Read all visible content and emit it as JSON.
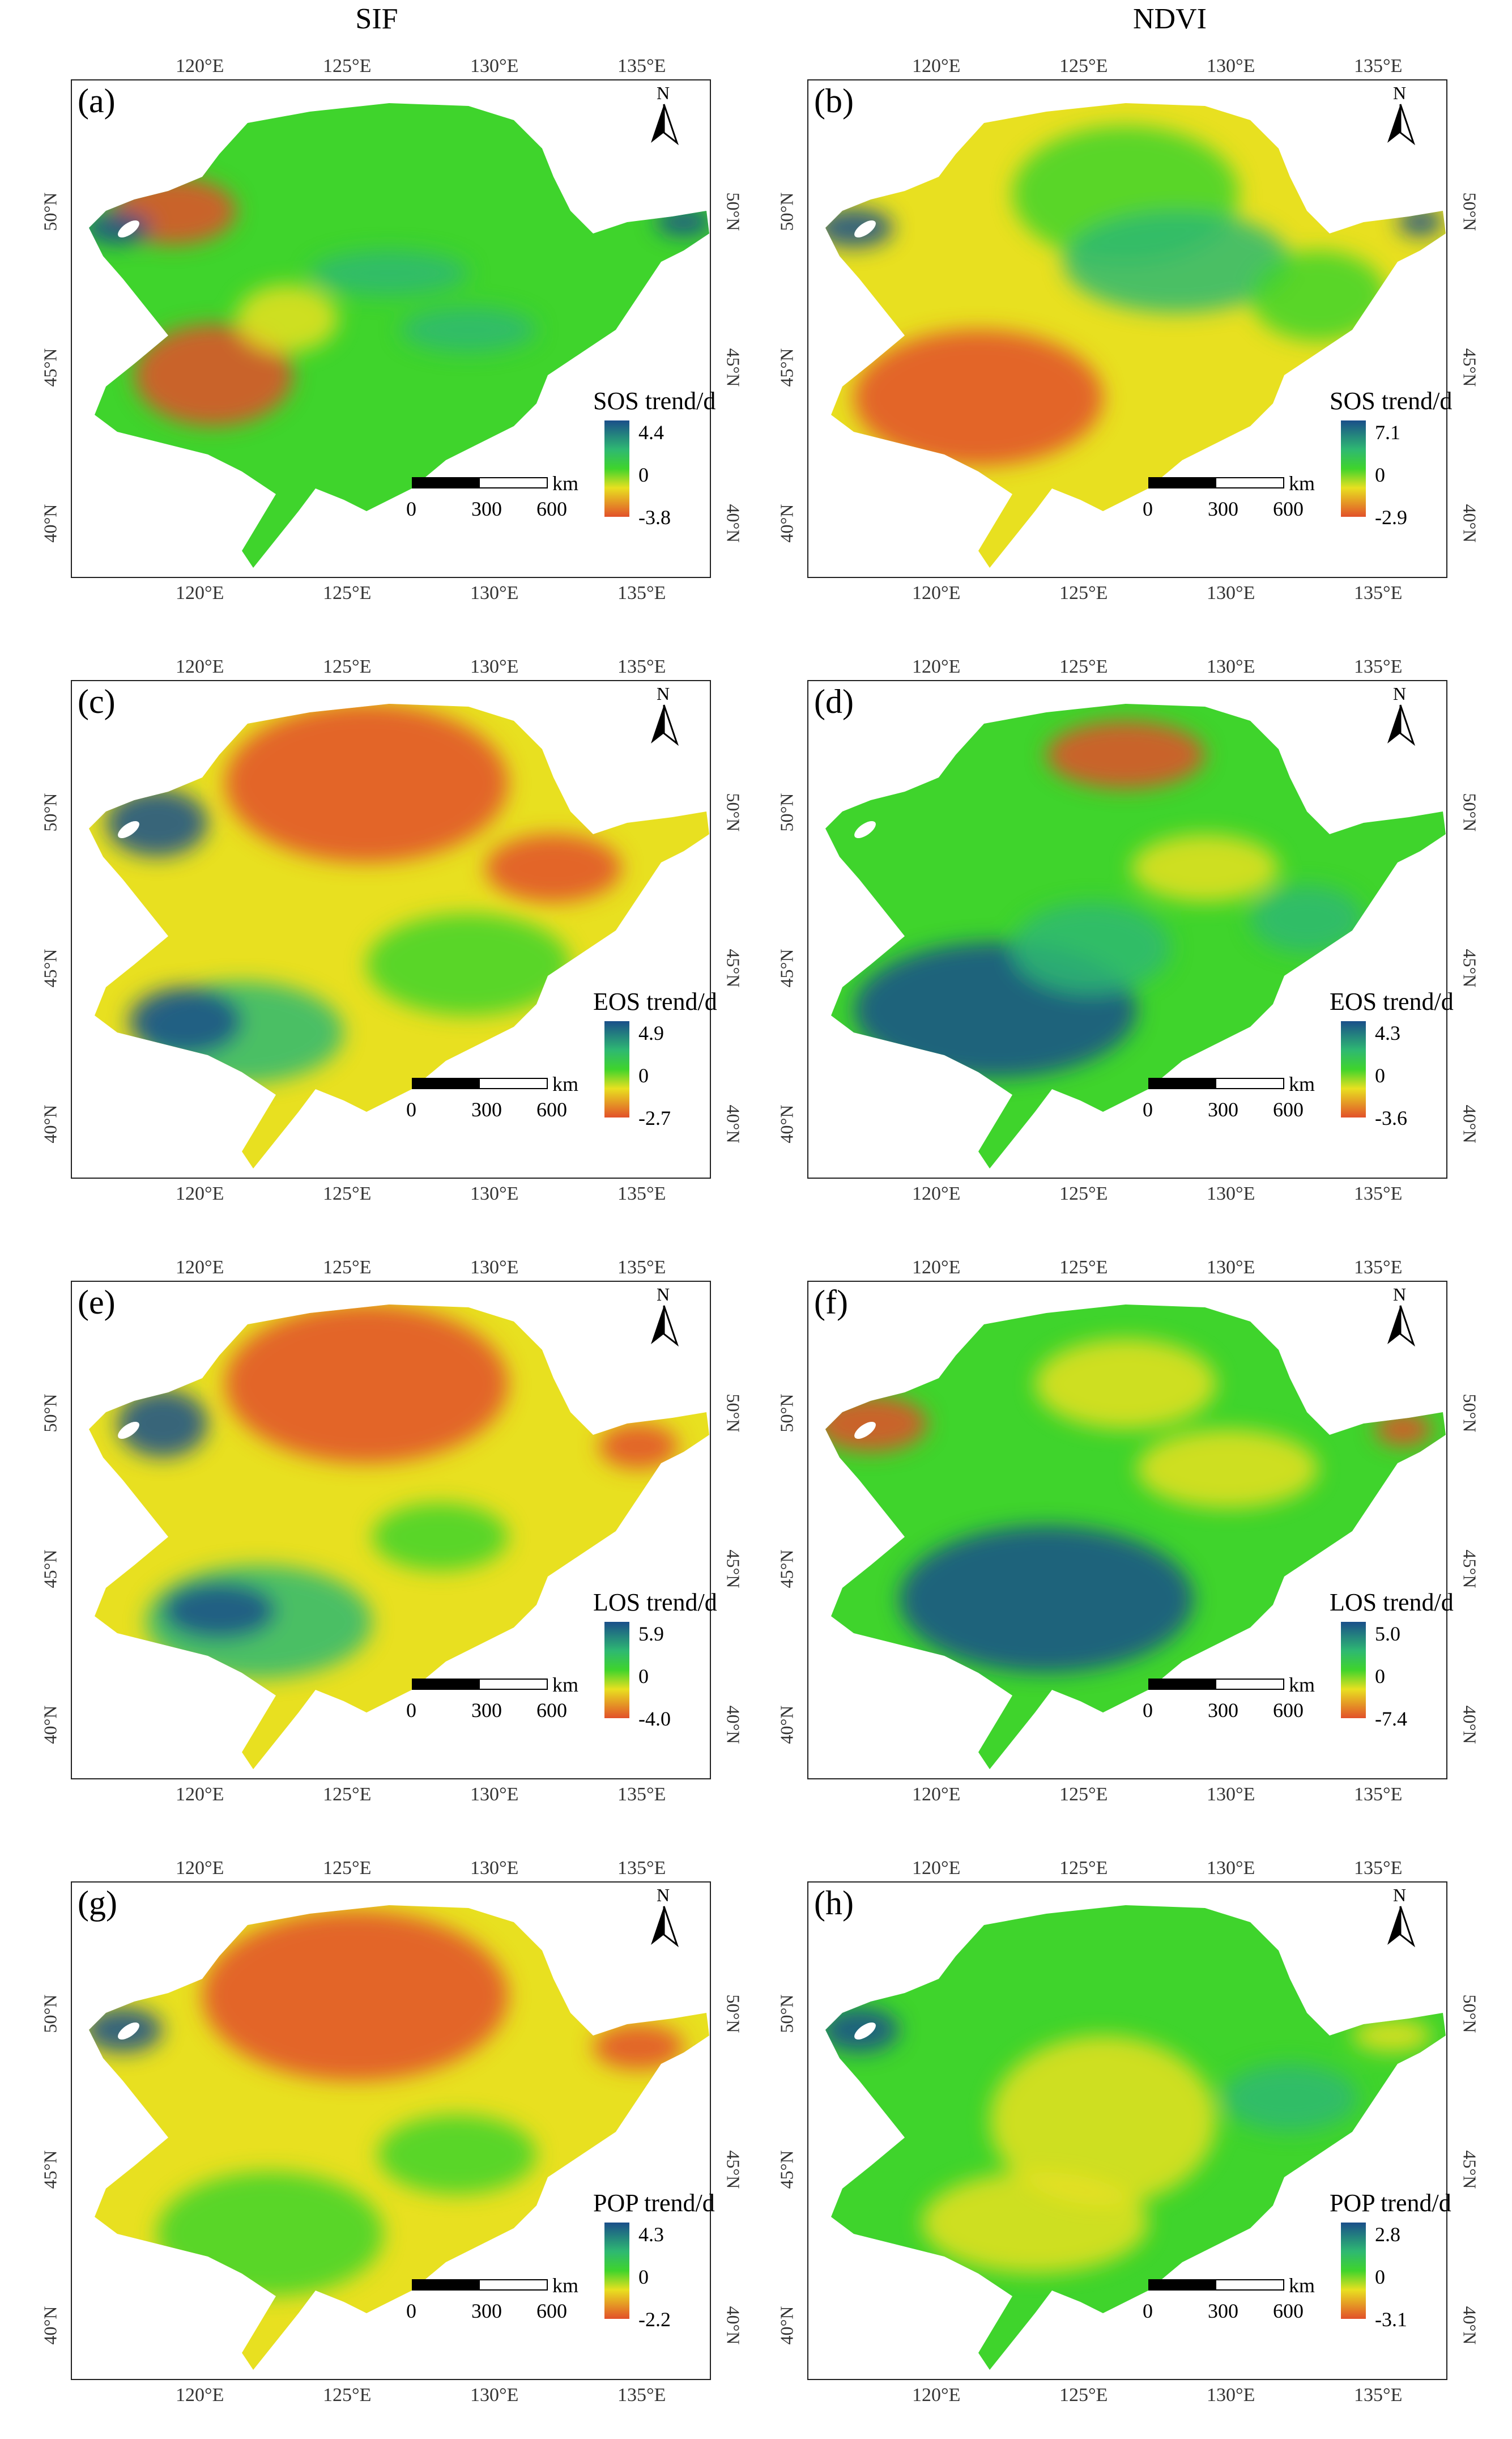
{
  "columns": {
    "left_title": "SIF",
    "right_title": "NDVI"
  },
  "axis_ticks": {
    "lon": [
      "120°E",
      "125°E",
      "130°E",
      "135°E"
    ],
    "lat": [
      "50°N",
      "45°N",
      "40°N"
    ]
  },
  "north_label": "N",
  "scale": {
    "labels": [
      "0",
      "300",
      "600"
    ],
    "unit": "km"
  },
  "colors": {
    "high": "#1a4f8a",
    "mid_high": "#2eb872",
    "zero": "#3fd42c",
    "mid_low": "#e8e020",
    "low": "#e2502a"
  },
  "panels": [
    {
      "label": "(a)",
      "legend_title": "SOS trend/d",
      "max": "4.4",
      "zero": "0",
      "min": "-3.8",
      "scheme": "sif_sos"
    },
    {
      "label": "(b)",
      "legend_title": "SOS trend/d",
      "max": "7.1",
      "zero": "0",
      "min": "-2.9",
      "scheme": "ndvi_sos"
    },
    {
      "label": "(c)",
      "legend_title": "EOS trend/d",
      "max": "4.9",
      "zero": "0",
      "min": "-2.7",
      "scheme": "sif_eos"
    },
    {
      "label": "(d)",
      "legend_title": "EOS trend/d",
      "max": "4.3",
      "zero": "0",
      "min": "-3.6",
      "scheme": "ndvi_eos"
    },
    {
      "label": "(e)",
      "legend_title": "LOS trend/d",
      "max": "5.9",
      "zero": "0",
      "min": "-4.0",
      "scheme": "sif_los"
    },
    {
      "label": "(f)",
      "legend_title": "LOS trend/d",
      "max": "5.0",
      "zero": "0",
      "min": "-7.4",
      "scheme": "ndvi_los"
    },
    {
      "label": "(g)",
      "legend_title": "POP trend/d",
      "max": "4.3",
      "zero": "0",
      "min": "-2.2",
      "scheme": "sif_pop"
    },
    {
      "label": "(h)",
      "legend_title": "POP trend/d",
      "max": "2.8",
      "zero": "0",
      "min": "-3.1",
      "scheme": "ndvi_pop"
    }
  ]
}
